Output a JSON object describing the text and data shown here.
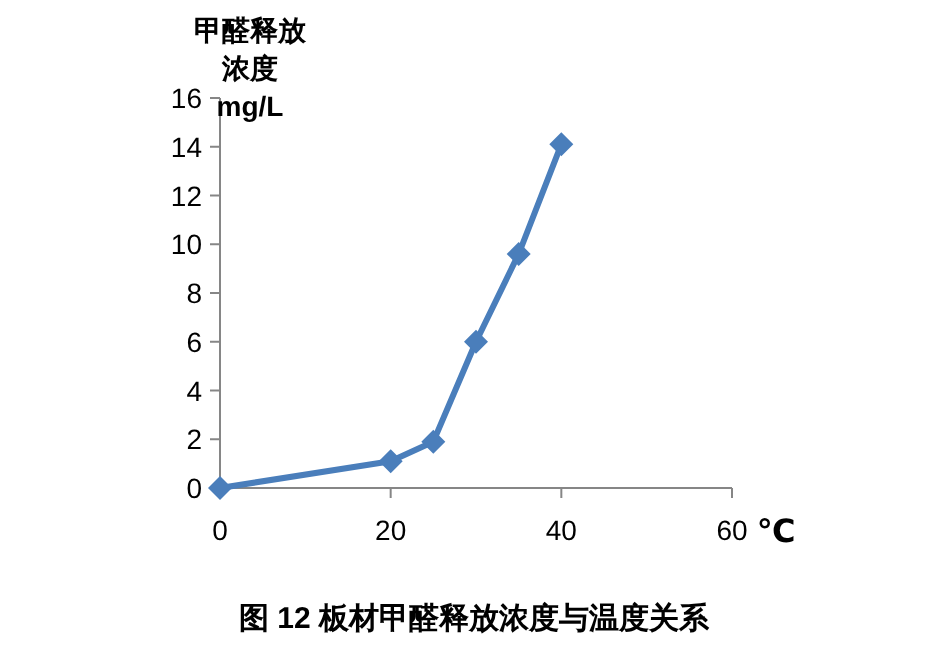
{
  "chart_data": {
    "type": "line",
    "title": "图 12 板材甲醛释放浓度与温度关系",
    "ylabel": "甲醛释放浓度mg/L",
    "xlabel": "℃",
    "x": [
      0,
      20,
      25,
      30,
      35,
      40
    ],
    "series": [
      {
        "color": "#4a7ebb",
        "values": [
          0,
          1.1,
          1.9,
          6,
          9.6,
          14.1
        ]
      }
    ],
    "xlim": [
      0,
      60
    ],
    "xticks": [
      0,
      20,
      40,
      60
    ],
    "ylim": [
      0,
      16
    ],
    "yticks": [
      0,
      2,
      4,
      6,
      8,
      10,
      12,
      14,
      16
    ],
    "marker": "diamond",
    "line_style": "solid",
    "grid": false
  }
}
